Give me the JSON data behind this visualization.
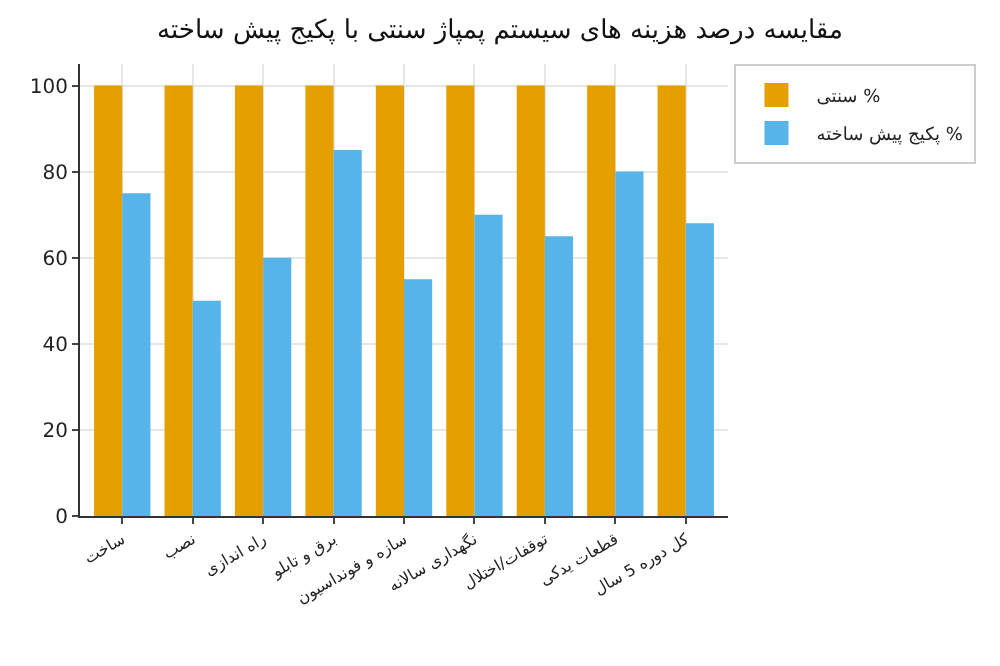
{
  "chart_data": {
    "type": "bar",
    "title": "مقایسه درصد هزینه های سیستم پمپاژ سنتی با پکیج پیش ساخته",
    "categories": [
      "ساخت",
      "نصب",
      "راه اندازی",
      "برق و تابلو",
      "سازه و فونداسیون",
      "نگهداری سالانه",
      "توقفات/اختلال",
      "قطعات یدکی",
      "کل دوره 5 سال"
    ],
    "series": [
      {
        "name": "سنتی %",
        "color": "#e69f00",
        "values": [
          100,
          100,
          100,
          100,
          100,
          100,
          100,
          100,
          100
        ]
      },
      {
        "name": "پکیج پیش ساخته %",
        "color": "#56b4e9",
        "values": [
          75,
          50,
          60,
          85,
          55,
          70,
          65,
          80,
          68
        ]
      }
    ],
    "ylim": [
      0,
      105
    ],
    "yticks": [
      0,
      20,
      40,
      60,
      80,
      100
    ],
    "grid": true,
    "legend": "top right"
  }
}
